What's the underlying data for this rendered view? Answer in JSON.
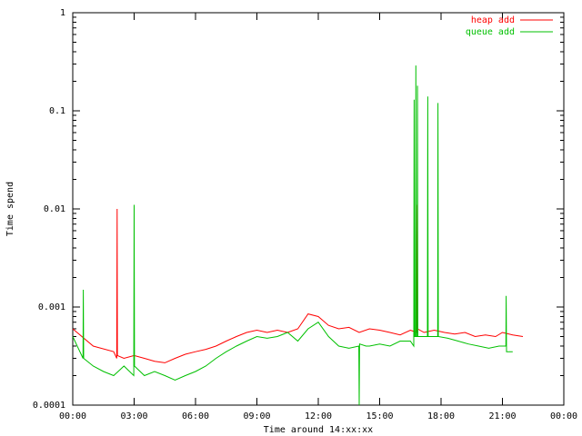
{
  "chart_data": {
    "type": "line",
    "title": "",
    "xlabel": "Time around 14:xx:xx",
    "ylabel": "Time spend",
    "yscale": "log",
    "ylim": [
      0.0001,
      1
    ],
    "xlim_minutes": [
      0,
      1440
    ],
    "x_tick_labels": [
      "00:00",
      "03:00",
      "06:00",
      "09:00",
      "12:00",
      "15:00",
      "18:00",
      "21:00",
      "00:00"
    ],
    "y_tick_labels": [
      "0.0001",
      "0.001",
      "0.01",
      "0.1",
      "1"
    ],
    "legend_position": "top-right",
    "grid": false,
    "series": [
      {
        "name": "heap add",
        "color": "#ff0000",
        "x_minutes": [
          0,
          60,
          120,
          129,
          130,
          131,
          150,
          180,
          210,
          240,
          270,
          300,
          330,
          360,
          390,
          420,
          450,
          480,
          510,
          540,
          570,
          600,
          630,
          660,
          690,
          720,
          750,
          780,
          810,
          840,
          870,
          900,
          930,
          960,
          990,
          1009,
          1010,
          1011,
          1030,
          1060,
          1090,
          1120,
          1150,
          1180,
          1210,
          1240,
          1260,
          1290,
          1320
        ],
        "values": [
          0.0006,
          0.0004,
          0.00035,
          0.0003,
          0.01,
          0.00032,
          0.0003,
          0.00032,
          0.0003,
          0.00028,
          0.00027,
          0.0003,
          0.00033,
          0.00035,
          0.00037,
          0.0004,
          0.00045,
          0.0005,
          0.00055,
          0.00058,
          0.00055,
          0.00058,
          0.00055,
          0.0006,
          0.00085,
          0.0008,
          0.00065,
          0.0006,
          0.00062,
          0.00055,
          0.0006,
          0.00058,
          0.00055,
          0.00052,
          0.00058,
          0.00055,
          0.011,
          0.0006,
          0.00055,
          0.00058,
          0.00055,
          0.00053,
          0.00055,
          0.0005,
          0.00052,
          0.0005,
          0.00055,
          0.00052,
          0.0005
        ]
      },
      {
        "name": "queue add",
        "color": "#00c000",
        "x_minutes": [
          0,
          30,
          31,
          32,
          60,
          90,
          120,
          150,
          179,
          180,
          181,
          210,
          240,
          270,
          300,
          330,
          360,
          390,
          420,
          450,
          480,
          510,
          540,
          570,
          600,
          630,
          660,
          690,
          720,
          750,
          780,
          810,
          839,
          840,
          841,
          860,
          870,
          900,
          930,
          960,
          990,
          1000,
          1001,
          1002,
          1005,
          1006,
          1007,
          1010,
          1011,
          1012,
          1040,
          1041,
          1042,
          1070,
          1071,
          1072,
          1100,
          1130,
          1160,
          1190,
          1220,
          1250,
          1270,
          1271,
          1272,
          1280,
          1290
        ],
        "values": [
          0.0005,
          0.0003,
          0.0015,
          0.0003,
          0.00025,
          0.00022,
          0.0002,
          0.00025,
          0.0002,
          0.011,
          0.00025,
          0.0002,
          0.00022,
          0.0002,
          0.00018,
          0.0002,
          0.00022,
          0.00025,
          0.0003,
          0.00035,
          0.0004,
          0.00045,
          0.0005,
          0.00048,
          0.0005,
          0.00055,
          0.00045,
          0.0006,
          0.0007,
          0.0005,
          0.0004,
          0.00038,
          0.0004,
          0.0001,
          0.00042,
          0.0004,
          0.0004,
          0.00042,
          0.0004,
          0.00045,
          0.00045,
          0.0004,
          0.13,
          0.0005,
          0.0005,
          0.29,
          0.0005,
          0.0005,
          0.18,
          0.0005,
          0.0005,
          0.14,
          0.0005,
          0.0005,
          0.12,
          0.0005,
          0.00048,
          0.00045,
          0.00042,
          0.0004,
          0.00038,
          0.0004,
          0.0004,
          0.0013,
          0.00035,
          0.00035,
          0.00035
        ]
      }
    ]
  }
}
